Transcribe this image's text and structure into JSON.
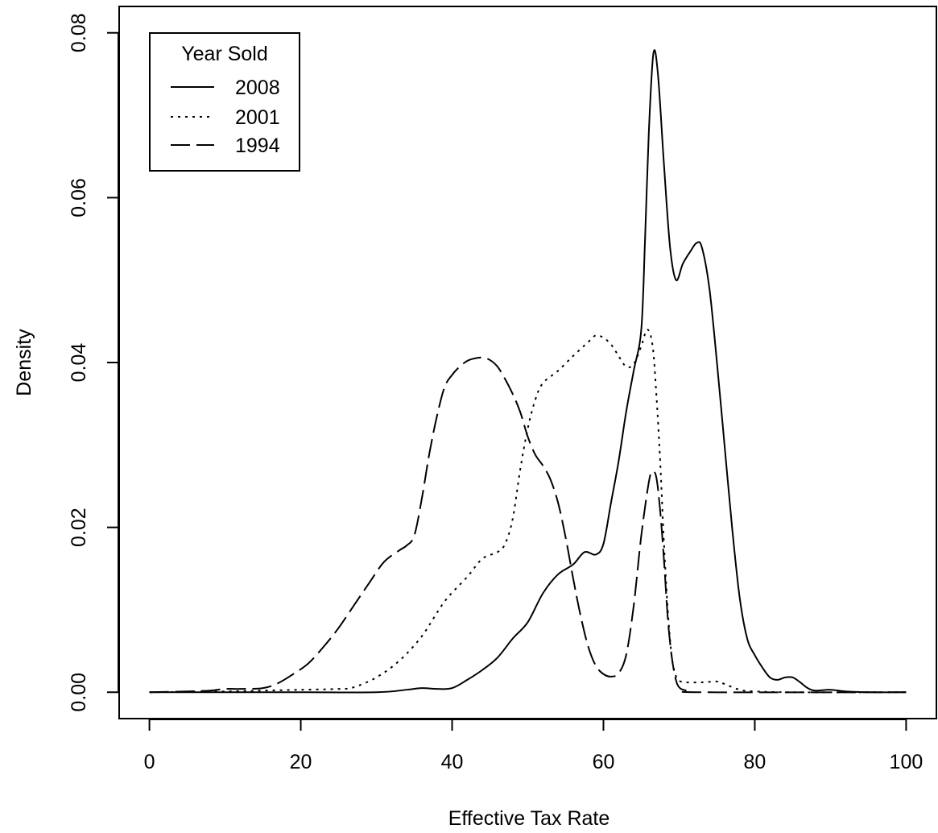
{
  "chart_data": {
    "type": "line",
    "title": "",
    "xlabel": "Effective Tax Rate",
    "ylabel": "Density",
    "xlim": [
      -4,
      104
    ],
    "ylim": [
      -0.0032,
      0.0832
    ],
    "xticks": [
      0,
      20,
      40,
      60,
      80,
      100
    ],
    "xtick_labels": [
      "0",
      "20",
      "40",
      "60",
      "80",
      "100"
    ],
    "yticks": [
      0,
      0.02,
      0.04,
      0.06,
      0.08
    ],
    "ytick_labels": [
      "0.00",
      "0.02",
      "0.04",
      "0.06",
      "0.08"
    ],
    "grid": false,
    "legend": {
      "title": "Year Sold",
      "position": "top-left"
    },
    "series": [
      {
        "name": "2008",
        "style": "solid",
        "points": [
          [
            0,
            0
          ],
          [
            10,
            0
          ],
          [
            20,
            0
          ],
          [
            30,
            0
          ],
          [
            34,
            0.0003
          ],
          [
            36,
            0.0005
          ],
          [
            38,
            0.0004
          ],
          [
            40,
            0.0005
          ],
          [
            42,
            0.0015
          ],
          [
            44,
            0.0027
          ],
          [
            46,
            0.0042
          ],
          [
            48,
            0.0065
          ],
          [
            50,
            0.0085
          ],
          [
            52,
            0.012
          ],
          [
            54,
            0.0143
          ],
          [
            56,
            0.0155
          ],
          [
            57.5,
            0.017
          ],
          [
            59,
            0.0167
          ],
          [
            60,
            0.018
          ],
          [
            61,
            0.023
          ],
          [
            62,
            0.028
          ],
          [
            63,
            0.034
          ],
          [
            64,
            0.039
          ],
          [
            65,
            0.044
          ],
          [
            65.5,
            0.055
          ],
          [
            66,
            0.068
          ],
          [
            66.6,
            0.0775
          ],
          [
            67.2,
            0.075
          ],
          [
            68,
            0.064
          ],
          [
            68.8,
            0.054
          ],
          [
            69.6,
            0.05
          ],
          [
            70.5,
            0.052
          ],
          [
            71.5,
            0.0535
          ],
          [
            72.3,
            0.0545
          ],
          [
            73,
            0.054
          ],
          [
            74,
            0.049
          ],
          [
            75,
            0.04
          ],
          [
            76,
            0.03
          ],
          [
            77,
            0.02
          ],
          [
            78,
            0.0115
          ],
          [
            79,
            0.0065
          ],
          [
            80,
            0.0045
          ],
          [
            81,
            0.003
          ],
          [
            82,
            0.0018
          ],
          [
            83,
            0.0015
          ],
          [
            84,
            0.0018
          ],
          [
            85,
            0.0018
          ],
          [
            86,
            0.0012
          ],
          [
            87,
            0.0005
          ],
          [
            88,
            0.0002
          ],
          [
            90,
            0.0003
          ],
          [
            92,
            0.0001
          ],
          [
            95,
            0
          ],
          [
            100,
            0
          ]
        ]
      },
      {
        "name": "2001",
        "style": "dotted",
        "points": [
          [
            0,
            0
          ],
          [
            10,
            0.0001
          ],
          [
            15,
            0.0002
          ],
          [
            20,
            0.0003
          ],
          [
            25,
            0.0004
          ],
          [
            27,
            0.0006
          ],
          [
            30,
            0.0018
          ],
          [
            33,
            0.0038
          ],
          [
            36,
            0.0068
          ],
          [
            39,
            0.011
          ],
          [
            42,
            0.014
          ],
          [
            44,
            0.0162
          ],
          [
            46,
            0.017
          ],
          [
            47,
            0.018
          ],
          [
            48,
            0.021
          ],
          [
            49,
            0.027
          ],
          [
            50,
            0.032
          ],
          [
            51,
            0.0355
          ],
          [
            52,
            0.0375
          ],
          [
            54,
            0.039
          ],
          [
            56,
            0.0408
          ],
          [
            58,
            0.0425
          ],
          [
            59,
            0.0433
          ],
          [
            60,
            0.043
          ],
          [
            61,
            0.0422
          ],
          [
            62,
            0.0408
          ],
          [
            63,
            0.0395
          ],
          [
            64,
            0.0398
          ],
          [
            65,
            0.042
          ],
          [
            65.8,
            0.044
          ],
          [
            66.5,
            0.042
          ],
          [
            67,
            0.036
          ],
          [
            67.5,
            0.028
          ],
          [
            68,
            0.018
          ],
          [
            68.5,
            0.01
          ],
          [
            69,
            0.0045
          ],
          [
            69.5,
            0.0022
          ],
          [
            70,
            0.0014
          ],
          [
            71,
            0.0012
          ],
          [
            73,
            0.0012
          ],
          [
            75,
            0.0013
          ],
          [
            76,
            0.001
          ],
          [
            78,
            0.0003
          ],
          [
            80,
            0.0001
          ],
          [
            85,
            0
          ],
          [
            100,
            0
          ]
        ]
      },
      {
        "name": "1994",
        "style": "dashed",
        "points": [
          [
            0,
            0
          ],
          [
            5,
            0.0001
          ],
          [
            8,
            0.0002
          ],
          [
            10,
            0.0004
          ],
          [
            12,
            0.0004
          ],
          [
            15,
            0.0005
          ],
          [
            17,
            0.0011
          ],
          [
            19,
            0.0022
          ],
          [
            21,
            0.0035
          ],
          [
            23,
            0.0055
          ],
          [
            25,
            0.0078
          ],
          [
            27,
            0.0105
          ],
          [
            29,
            0.0132
          ],
          [
            31,
            0.0158
          ],
          [
            33,
            0.0172
          ],
          [
            34,
            0.0178
          ],
          [
            35,
            0.019
          ],
          [
            36,
            0.0235
          ],
          [
            37,
            0.029
          ],
          [
            38,
            0.0335
          ],
          [
            39,
            0.037
          ],
          [
            40,
            0.0385
          ],
          [
            41,
            0.0395
          ],
          [
            42,
            0.0402
          ],
          [
            43,
            0.0405
          ],
          [
            44,
            0.0406
          ],
          [
            45,
            0.0403
          ],
          [
            46,
            0.0395
          ],
          [
            47,
            0.038
          ],
          [
            48,
            0.0362
          ],
          [
            49,
            0.034
          ],
          [
            50,
            0.031
          ],
          [
            51,
            0.0288
          ],
          [
            52,
            0.0275
          ],
          [
            53,
            0.0258
          ],
          [
            54,
            0.023
          ],
          [
            55,
            0.0188
          ],
          [
            56,
            0.0138
          ],
          [
            57,
            0.0092
          ],
          [
            58,
            0.0055
          ],
          [
            59,
            0.0032
          ],
          [
            60,
            0.0022
          ],
          [
            61,
            0.0019
          ],
          [
            62,
            0.0023
          ],
          [
            63,
            0.0045
          ],
          [
            64,
            0.0105
          ],
          [
            65,
            0.019
          ],
          [
            66,
            0.0255
          ],
          [
            66.5,
            0.0268
          ],
          [
            67,
            0.026
          ],
          [
            67.5,
            0.022
          ],
          [
            68,
            0.016
          ],
          [
            68.5,
            0.009
          ],
          [
            69,
            0.0045
          ],
          [
            69.5,
            0.0018
          ],
          [
            70,
            0.0006
          ],
          [
            71,
            0.0002
          ],
          [
            73,
            0
          ],
          [
            100,
            0
          ]
        ]
      }
    ]
  }
}
